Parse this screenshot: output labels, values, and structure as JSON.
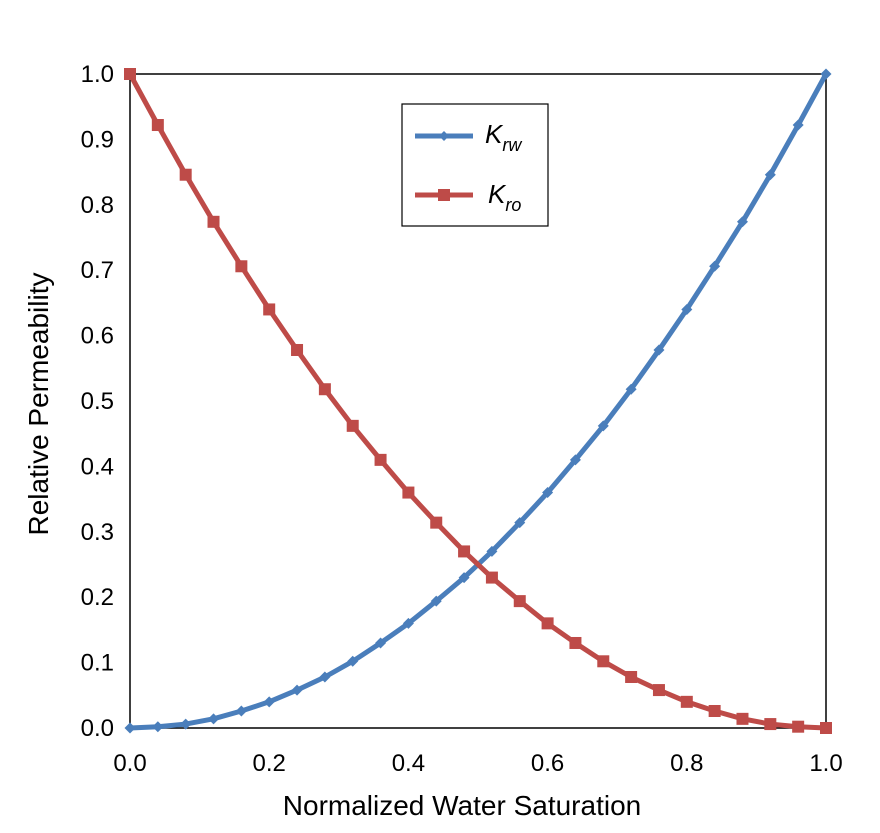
{
  "chart_data": {
    "type": "line",
    "xlabel": "Normalized Water Saturation",
    "ylabel": "Relative Permeability",
    "xlim": [
      0,
      1
    ],
    "ylim": [
      0,
      1
    ],
    "xticks": [
      "0.0",
      "0.2",
      "0.4",
      "0.6",
      "0.8",
      "1.0"
    ],
    "yticks": [
      "0.0",
      "0.1",
      "0.2",
      "0.3",
      "0.4",
      "0.5",
      "0.6",
      "0.7",
      "0.8",
      "0.9",
      "1.0"
    ],
    "grid": false,
    "legend_position": "top-center",
    "x": [
      0.0,
      0.04,
      0.08,
      0.12,
      0.16,
      0.2,
      0.24,
      0.28,
      0.32,
      0.36,
      0.4,
      0.44,
      0.48,
      0.52,
      0.56,
      0.6,
      0.64,
      0.68,
      0.72,
      0.76,
      0.8,
      0.84,
      0.88,
      0.92,
      0.96,
      1.0
    ],
    "series": [
      {
        "name": "K",
        "name_sub": "rw",
        "color": "#4a7ebb",
        "marker": "diamond",
        "values": [
          0.0,
          0.002,
          0.006,
          0.014,
          0.026,
          0.04,
          0.058,
          0.078,
          0.102,
          0.13,
          0.16,
          0.194,
          0.23,
          0.27,
          0.314,
          0.36,
          0.41,
          0.462,
          0.518,
          0.578,
          0.64,
          0.706,
          0.774,
          0.846,
          0.922,
          1.0
        ]
      },
      {
        "name": "K",
        "name_sub": "ro",
        "color": "#be4b48",
        "marker": "square",
        "values": [
          1.0,
          0.922,
          0.846,
          0.774,
          0.706,
          0.64,
          0.578,
          0.518,
          0.462,
          0.41,
          0.36,
          0.314,
          0.27,
          0.23,
          0.194,
          0.16,
          0.13,
          0.102,
          0.078,
          0.058,
          0.04,
          0.026,
          0.014,
          0.006,
          0.002,
          0.0
        ]
      }
    ]
  }
}
